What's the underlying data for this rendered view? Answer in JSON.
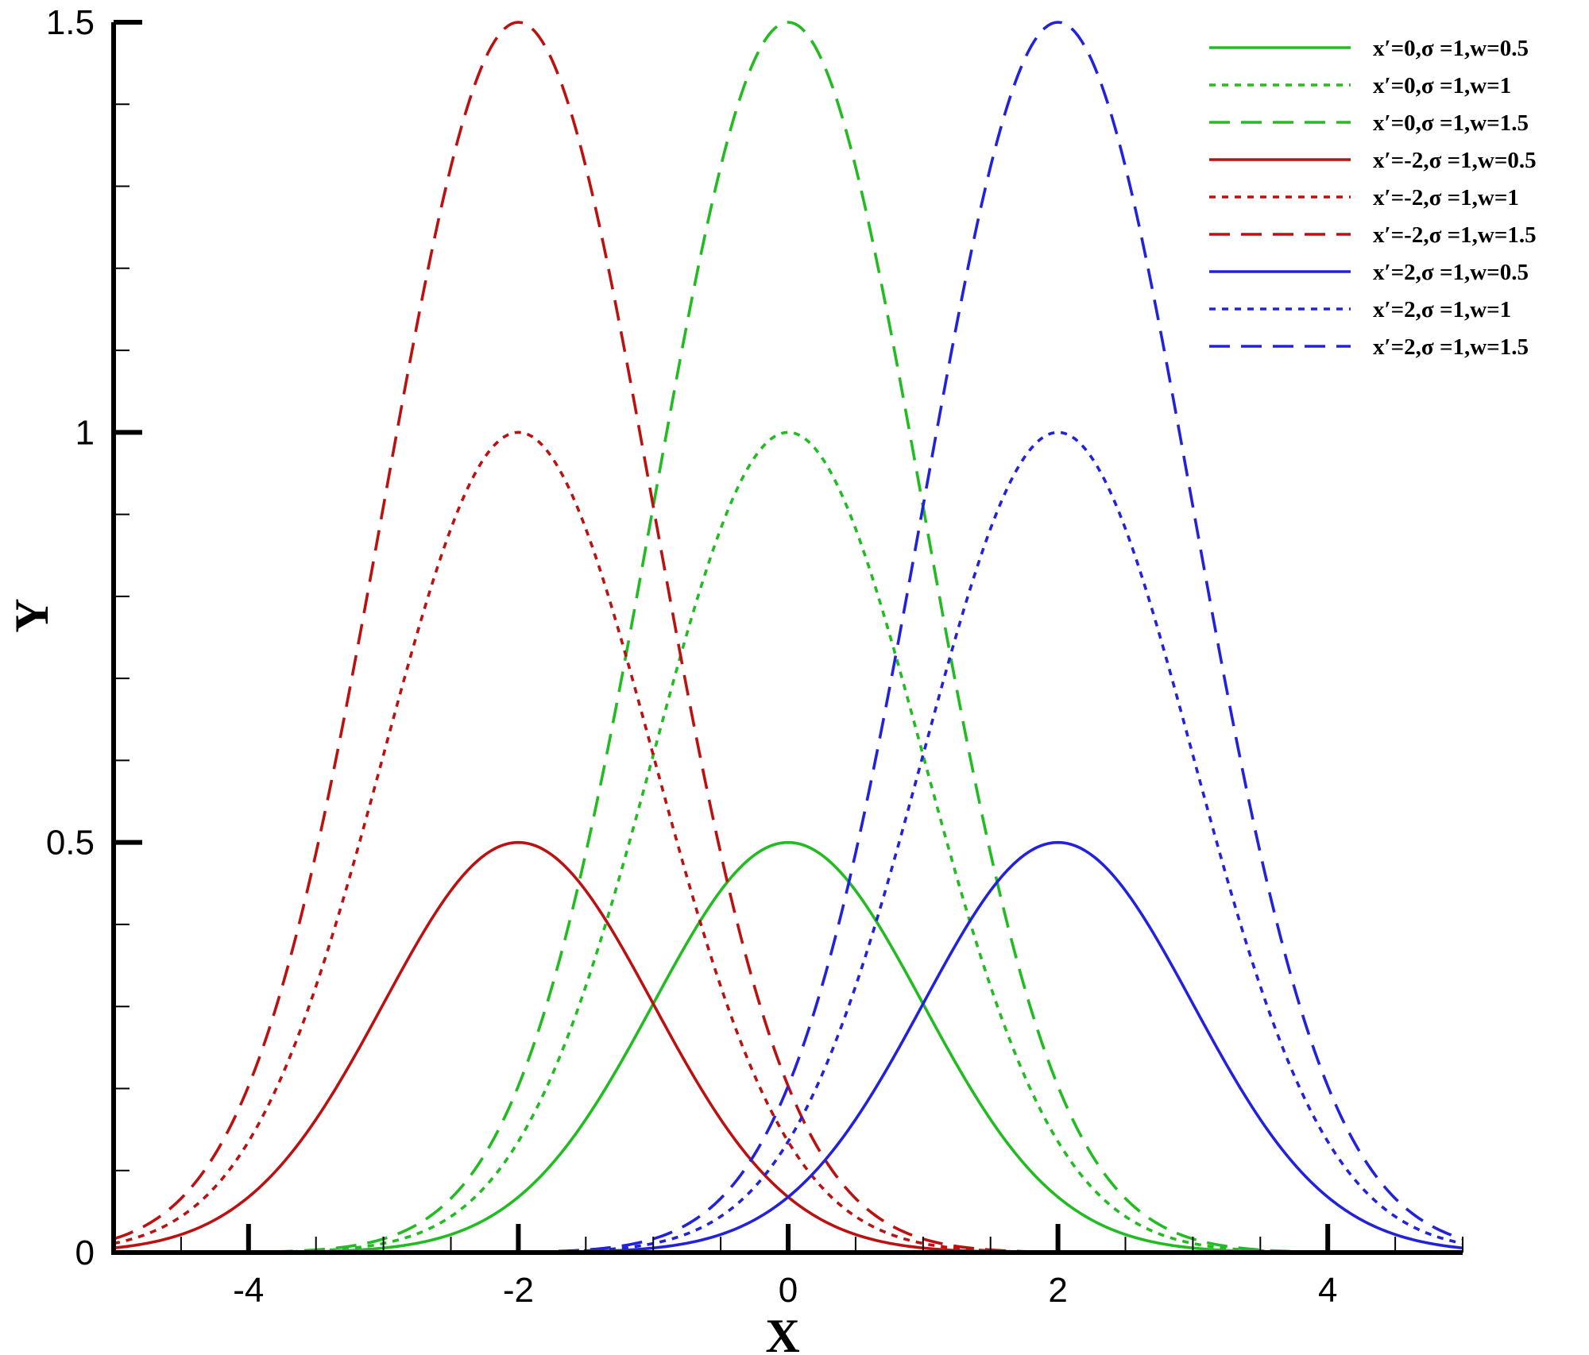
{
  "chart_data": {
    "type": "line",
    "xlabel": "X",
    "ylabel": "Y",
    "xlim": [
      -5,
      5
    ],
    "ylim": [
      0,
      1.5
    ],
    "x_ticks": [
      -4,
      -2,
      0,
      2,
      4
    ],
    "x_tick_labels": [
      "-4",
      "-2",
      "0",
      "2",
      "4"
    ],
    "y_ticks": [
      0,
      0.5,
      1,
      1.5
    ],
    "y_tick_labels": [
      "0",
      "0.5",
      "1",
      "1.5"
    ],
    "grid": false,
    "legend_position": "top-right",
    "series": [
      {
        "name": "x′=0,σ =1,w=0.5",
        "center": 0,
        "sigma": 1,
        "amplitude": 0.5,
        "color": "#22bb22",
        "dash": "solid"
      },
      {
        "name": "x′=0,σ =1,w=1",
        "center": 0,
        "sigma": 1,
        "amplitude": 1.0,
        "color": "#22bb22",
        "dash": "dotted"
      },
      {
        "name": "x′=0,σ =1,w=1.5",
        "center": 0,
        "sigma": 1,
        "amplitude": 1.5,
        "color": "#22bb22",
        "dash": "dashed"
      },
      {
        "name": "x′=-2,σ =1,w=0.5",
        "center": -2,
        "sigma": 1,
        "amplitude": 0.5,
        "color": "#bb1111",
        "dash": "solid"
      },
      {
        "name": "x′=-2,σ =1,w=1",
        "center": -2,
        "sigma": 1,
        "amplitude": 1.0,
        "color": "#bb1111",
        "dash": "dotted"
      },
      {
        "name": "x′=-2,σ =1,w=1.5",
        "center": -2,
        "sigma": 1,
        "amplitude": 1.5,
        "color": "#bb1111",
        "dash": "dashed"
      },
      {
        "name": "x′=2,σ =1,w=0.5",
        "center": 2,
        "sigma": 1,
        "amplitude": 0.5,
        "color": "#2222dd",
        "dash": "solid"
      },
      {
        "name": "x′=2,σ =1,w=1",
        "center": 2,
        "sigma": 1,
        "amplitude": 1.0,
        "color": "#2222dd",
        "dash": "dotted"
      },
      {
        "name": "x′=2,σ =1,w=1.5",
        "center": 2,
        "sigma": 1,
        "amplitude": 1.5,
        "color": "#2222dd",
        "dash": "dashed"
      }
    ]
  }
}
